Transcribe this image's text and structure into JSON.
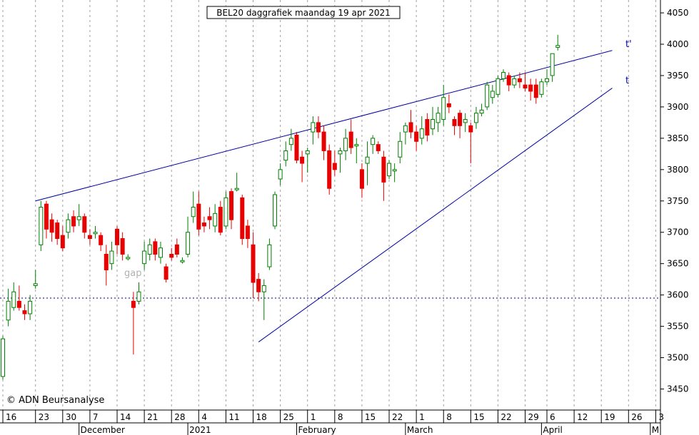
{
  "chart_data": {
    "type": "candlestick",
    "title": "BEL20 daggrafiek maandag 19 apr 2021",
    "watermark": "© ADN Beursanalyse",
    "annotations": {
      "gap": "gap",
      "upper_line": "t'",
      "lower_line": "t"
    },
    "ylim": [
      3410,
      4070
    ],
    "y_ticks": [
      3450,
      3500,
      3550,
      3600,
      3650,
      3700,
      3750,
      3800,
      3850,
      3900,
      3950,
      4000,
      4050
    ],
    "y_tick_labels": [
      "3450",
      "3500",
      "3550",
      "3600",
      "3650",
      "3700",
      "3750",
      "3800",
      "3850",
      "3900",
      "3950",
      "4000",
      "4050"
    ],
    "x_tick_labels": [
      "16",
      "23",
      "30",
      "7",
      "14",
      "21",
      "28",
      "4",
      "11",
      "18",
      "25",
      "1",
      "8",
      "15",
      "22",
      "1",
      "8",
      "15",
      "22",
      "29",
      "6",
      "12",
      "19",
      "26",
      "3"
    ],
    "x_tick_slot": [
      0,
      6,
      11,
      16,
      21,
      26,
      31,
      36,
      41,
      46,
      51,
      56,
      61,
      66,
      71,
      76,
      81,
      86,
      91,
      96,
      100,
      105,
      110,
      115,
      120
    ],
    "months": [
      "December",
      "2021",
      "February",
      "March",
      "April",
      "M"
    ],
    "month_slot": [
      14,
      34,
      54,
      74,
      99,
      119
    ],
    "gap_level": 3595,
    "colors": {
      "up": "#008000",
      "down": "#e60000",
      "trendline": "#0000a0",
      "grid": "#a0a0a0",
      "gap_line": "#00007f"
    },
    "trendlines": [
      {
        "name": "t'",
        "points": [
          [
            6,
            3750
          ],
          [
            112,
            3990
          ]
        ]
      },
      {
        "name": "t",
        "points": [
          [
            47,
            3525
          ],
          [
            112,
            3930
          ]
        ]
      }
    ],
    "candles": [
      [
        3470,
        3530,
        3465,
        3535
      ],
      [
        3560,
        3590,
        3550,
        3610
      ],
      [
        3580,
        3605,
        3575,
        3620
      ],
      [
        3590,
        3580,
        3575,
        3615
      ],
      [
        3575,
        3570,
        3560,
        3585
      ],
      [
        3570,
        3590,
        3560,
        3600
      ],
      [
        3615,
        3618,
        3610,
        3640
      ],
      [
        3680,
        3740,
        3670,
        3750
      ],
      [
        3745,
        3705,
        3690,
        3750
      ],
      [
        3720,
        3700,
        3685,
        3730
      ],
      [
        3715,
        3690,
        3680,
        3720
      ],
      [
        3695,
        3675,
        3670,
        3710
      ],
      [
        3700,
        3720,
        3690,
        3730
      ],
      [
        3725,
        3710,
        3700,
        3735
      ],
      [
        3720,
        3725,
        3710,
        3745
      ],
      [
        3725,
        3700,
        3690,
        3730
      ],
      [
        3695,
        3690,
        3680,
        3705
      ],
      [
        3700,
        3700,
        3690,
        3710
      ],
      [
        3695,
        3680,
        3670,
        3700
      ],
      [
        3665,
        3640,
        3615,
        3680
      ],
      [
        3650,
        3670,
        3640,
        3685
      ],
      [
        3705,
        3680,
        3665,
        3710
      ],
      [
        3690,
        3665,
        3655,
        3700
      ],
      [
        3660,
        3660,
        3655,
        3665
      ],
      [
        3590,
        3580,
        3505,
        3605
      ],
      [
        3590,
        3605,
        3585,
        3620
      ],
      [
        3650,
        3670,
        3640,
        3685
      ],
      [
        3665,
        3680,
        3655,
        3690
      ],
      [
        3685,
        3665,
        3655,
        3690
      ],
      [
        3660,
        3675,
        3650,
        3685
      ],
      [
        3645,
        3625,
        3620,
        3650
      ],
      [
        3665,
        3660,
        3655,
        3675
      ],
      [
        3680,
        3665,
        3660,
        3690
      ],
      [
        3655,
        3655,
        3650,
        3660
      ],
      [
        3665,
        3700,
        3660,
        3725
      ],
      [
        3725,
        3740,
        3715,
        3765
      ],
      [
        3745,
        3705,
        3695,
        3765
      ],
      [
        3715,
        3710,
        3700,
        3725
      ],
      [
        3725,
        3720,
        3705,
        3740
      ],
      [
        3710,
        3730,
        3700,
        3745
      ],
      [
        3740,
        3700,
        3695,
        3750
      ],
      [
        3710,
        3755,
        3705,
        3765
      ],
      [
        3765,
        3720,
        3705,
        3770
      ],
      [
        3770,
        3770,
        3765,
        3795
      ],
      [
        3755,
        3690,
        3680,
        3760
      ],
      [
        3710,
        3690,
        3675,
        3720
      ],
      [
        3680,
        3620,
        3595,
        3700
      ],
      [
        3625,
        3605,
        3590,
        3635
      ],
      [
        3605,
        3615,
        3560,
        3625
      ],
      [
        3645,
        3680,
        3640,
        3690
      ],
      [
        3710,
        3760,
        3705,
        3765
      ],
      [
        3785,
        3800,
        3775,
        3810
      ],
      [
        3815,
        3830,
        3805,
        3845
      ],
      [
        3840,
        3850,
        3830,
        3865
      ],
      [
        3855,
        3815,
        3810,
        3860
      ],
      [
        3820,
        3810,
        3780,
        3830
      ],
      [
        3825,
        3830,
        3795,
        3835
      ],
      [
        3860,
        3875,
        3840,
        3885
      ],
      [
        3875,
        3860,
        3850,
        3885
      ],
      [
        3860,
        3830,
        3815,
        3870
      ],
      [
        3830,
        3770,
        3760,
        3840
      ],
      [
        3810,
        3800,
        3790,
        3830
      ],
      [
        3825,
        3830,
        3795,
        3835
      ],
      [
        3830,
        3850,
        3815,
        3865
      ],
      [
        3860,
        3835,
        3825,
        3880
      ],
      [
        3840,
        3840,
        3810,
        3850
      ],
      [
        3800,
        3770,
        3755,
        3810
      ],
      [
        3810,
        3820,
        3775,
        3845
      ],
      [
        3840,
        3850,
        3825,
        3855
      ],
      [
        3840,
        3830,
        3825,
        3845
      ],
      [
        3820,
        3780,
        3750,
        3830
      ],
      [
        3790,
        3810,
        3785,
        3815
      ],
      [
        3800,
        3800,
        3780,
        3810
      ],
      [
        3820,
        3845,
        3810,
        3860
      ],
      [
        3860,
        3870,
        3840,
        3875
      ],
      [
        3875,
        3860,
        3850,
        3895
      ],
      [
        3860,
        3845,
        3830,
        3870
      ],
      [
        3850,
        3865,
        3840,
        3885
      ],
      [
        3880,
        3855,
        3845,
        3890
      ],
      [
        3865,
        3880,
        3855,
        3900
      ],
      [
        3875,
        3890,
        3860,
        3900
      ],
      [
        3880,
        3915,
        3870,
        3935
      ],
      [
        3905,
        3900,
        3890,
        3920
      ],
      [
        3880,
        3870,
        3855,
        3885
      ],
      [
        3890,
        3870,
        3850,
        3895
      ],
      [
        3875,
        3880,
        3860,
        3890
      ],
      [
        3870,
        3860,
        3810,
        3875
      ],
      [
        3875,
        3890,
        3865,
        3900
      ],
      [
        3890,
        3895,
        3885,
        3905
      ],
      [
        3900,
        3935,
        3895,
        3940
      ],
      [
        3915,
        3925,
        3905,
        3935
      ],
      [
        3920,
        3945,
        3915,
        3950
      ],
      [
        3945,
        3955,
        3940,
        3960
      ],
      [
        3950,
        3935,
        3925,
        3955
      ],
      [
        3935,
        3945,
        3930,
        3950
      ],
      [
        3945,
        3940,
        3930,
        3955
      ],
      [
        3935,
        3930,
        3925,
        3955
      ],
      [
        3935,
        3925,
        3910,
        3945
      ],
      [
        3935,
        3915,
        3905,
        3945
      ],
      [
        3920,
        3940,
        3915,
        3945
      ],
      [
        3940,
        3945,
        3935,
        3960
      ],
      [
        3950,
        3985,
        3940,
        3985
      ],
      [
        3995,
        3998,
        3990,
        4015
      ]
    ]
  }
}
